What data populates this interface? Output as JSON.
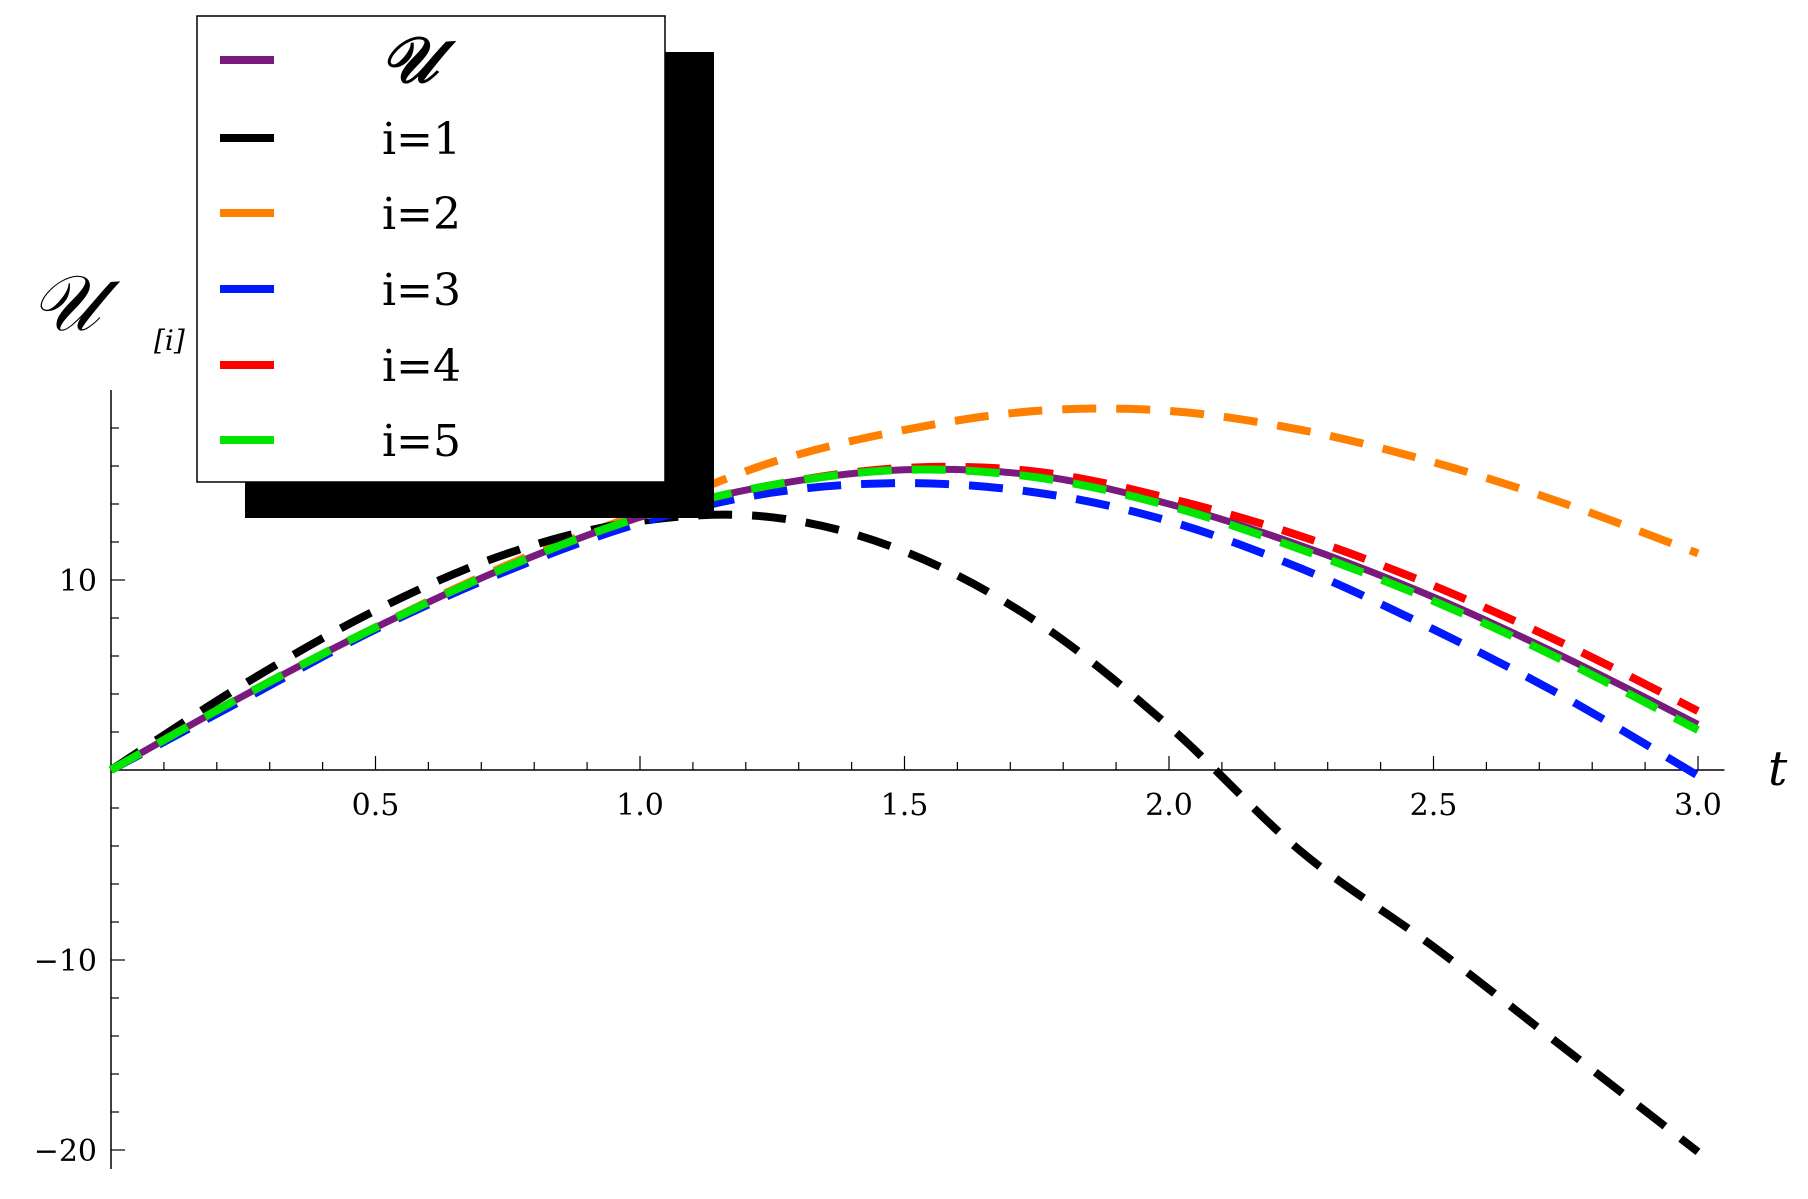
{
  "chart_data": {
    "type": "line",
    "xlabel": "t",
    "ylabel": "𝒰",
    "ylabel_sub": "[i]",
    "xlim": [
      0,
      3.05
    ],
    "ylim": [
      -21,
      20
    ],
    "x_ticks": [
      0.5,
      1.0,
      1.5,
      2.0,
      2.5,
      3.0
    ],
    "x_tick_labels": [
      "0.5",
      "1.0",
      "1.5",
      "2.0",
      "2.5",
      "3.0"
    ],
    "y_ticks": [
      -20,
      -10,
      10
    ],
    "y_tick_labels": [
      "−20",
      "−10",
      "10"
    ],
    "legend_position": "top-left",
    "series": [
      {
        "name": "𝒰",
        "color": "#7b1a7e",
        "dashed": false,
        "x": [
          0,
          0.25,
          0.5,
          0.75,
          1.0,
          1.25,
          1.5,
          1.75,
          2.0,
          2.25,
          2.5,
          2.75,
          3.0
        ],
        "y": [
          0,
          3.9,
          7.5,
          10.7,
          13.3,
          15.0,
          15.8,
          15.5,
          14.0,
          11.8,
          9.1,
          5.9,
          2.4
        ]
      },
      {
        "name": "i=1",
        "color": "#000000",
        "dashed": true,
        "x": [
          0,
          0.25,
          0.5,
          0.75,
          1.0,
          1.25,
          1.5,
          1.75,
          2.0,
          2.25,
          2.5,
          2.75,
          3.0
        ],
        "y": [
          0,
          4.5,
          8.4,
          11.4,
          13.1,
          13.3,
          11.5,
          7.8,
          2.3,
          -4.3,
          -9.3,
          -14.7,
          -20.1
        ]
      },
      {
        "name": "i=2",
        "color": "#ff8000",
        "dashed": true,
        "x": [
          0,
          0.25,
          0.5,
          0.75,
          1.0,
          1.25,
          1.5,
          1.75,
          2.0,
          2.25,
          2.5,
          2.75,
          3.0
        ],
        "y": [
          0,
          3.8,
          7.5,
          10.8,
          13.5,
          16.2,
          17.9,
          18.9,
          18.9,
          17.9,
          16.2,
          14.0,
          11.4
        ]
      },
      {
        "name": "i=3",
        "color": "#0019ff",
        "dashed": true,
        "x": [
          0,
          0.25,
          0.5,
          0.75,
          1.0,
          1.25,
          1.5,
          1.75,
          2.0,
          2.25,
          2.5,
          2.75,
          3.0
        ],
        "y": [
          0,
          3.7,
          7.4,
          10.5,
          13.0,
          14.6,
          15.1,
          14.6,
          13.1,
          10.6,
          7.4,
          3.8,
          -0.3
        ]
      },
      {
        "name": "i=4",
        "color": "#ff0000",
        "dashed": true,
        "x": [
          0,
          0.25,
          0.5,
          0.75,
          1.0,
          1.25,
          1.5,
          1.75,
          2.0,
          2.25,
          2.5,
          2.75,
          3.0
        ],
        "y": [
          0,
          3.9,
          7.5,
          10.7,
          13.3,
          15.0,
          15.9,
          15.7,
          14.3,
          12.3,
          9.7,
          6.6,
          3.1
        ]
      },
      {
        "name": "i=5",
        "color": "#00e600",
        "dashed": true,
        "x": [
          0,
          0.25,
          0.5,
          0.75,
          1.0,
          1.25,
          1.5,
          1.75,
          2.0,
          2.25,
          2.5,
          2.75,
          3.0
        ],
        "y": [
          0,
          3.9,
          7.5,
          10.7,
          13.3,
          15.0,
          15.8,
          15.4,
          13.9,
          11.6,
          8.9,
          5.7,
          2.1
        ]
      }
    ]
  }
}
